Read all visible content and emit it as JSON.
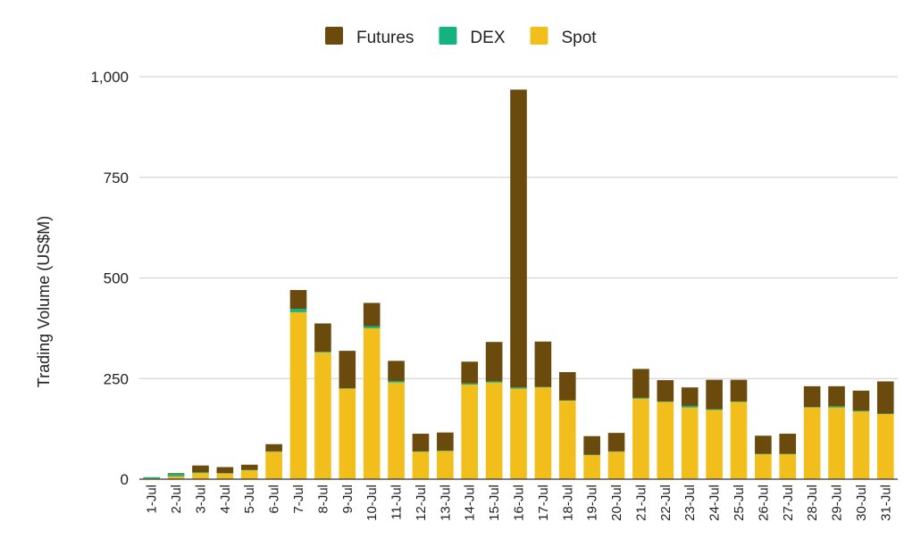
{
  "chart_data": {
    "type": "bar",
    "stacked": true,
    "title": "",
    "xlabel": "",
    "ylabel": "Trading Volume (US$M)",
    "ylim": [
      0,
      1000
    ],
    "yticks": [
      0,
      250,
      500,
      750,
      1000
    ],
    "ytick_labels": [
      "0",
      "250",
      "500",
      "750",
      "1,000"
    ],
    "grid": true,
    "legend_position": "top-center",
    "categories": [
      "1-Jul",
      "2-Jul",
      "3-Jul",
      "4-Jul",
      "5-Jul",
      "6-Jul",
      "7-Jul",
      "8-Jul",
      "9-Jul",
      "10-Jul",
      "11-Jul",
      "12-Jul",
      "13-Jul",
      "14-Jul",
      "15-Jul",
      "16-Jul",
      "17-Jul",
      "18-Jul",
      "19-Jul",
      "20-Jul",
      "21-Jul",
      "22-Jul",
      "23-Jul",
      "24-Jul",
      "25-Jul",
      "26-Jul",
      "27-Jul",
      "28-Jul",
      "29-Jul",
      "30-Jul",
      "31-Jul"
    ],
    "series": [
      {
        "name": "Spot",
        "color": "#F2BE1C",
        "values": [
          2,
          7,
          15,
          14,
          22,
          68,
          415,
          315,
          225,
          375,
          240,
          68,
          70,
          235,
          240,
          225,
          228,
          195,
          60,
          68,
          200,
          192,
          178,
          172,
          192,
          62,
          62,
          178,
          178,
          168,
          162
        ]
      },
      {
        "name": "DEX",
        "color": "#14B27E",
        "values": [
          3,
          6,
          2,
          1,
          1,
          1,
          8,
          2,
          1,
          5,
          4,
          1,
          1,
          3,
          3,
          3,
          1,
          1,
          1,
          1,
          2,
          1,
          4,
          2,
          1,
          1,
          1,
          1,
          3,
          2,
          1
        ]
      },
      {
        "name": "Futures",
        "color": "#6B4A0E",
        "values": [
          0,
          2,
          17,
          15,
          13,
          18,
          47,
          70,
          93,
          58,
          50,
          44,
          45,
          54,
          98,
          740,
          113,
          70,
          46,
          46,
          72,
          53,
          46,
          73,
          54,
          45,
          50,
          52,
          50,
          50,
          80
        ]
      }
    ],
    "legend_order": [
      "Futures",
      "DEX",
      "Spot"
    ]
  }
}
